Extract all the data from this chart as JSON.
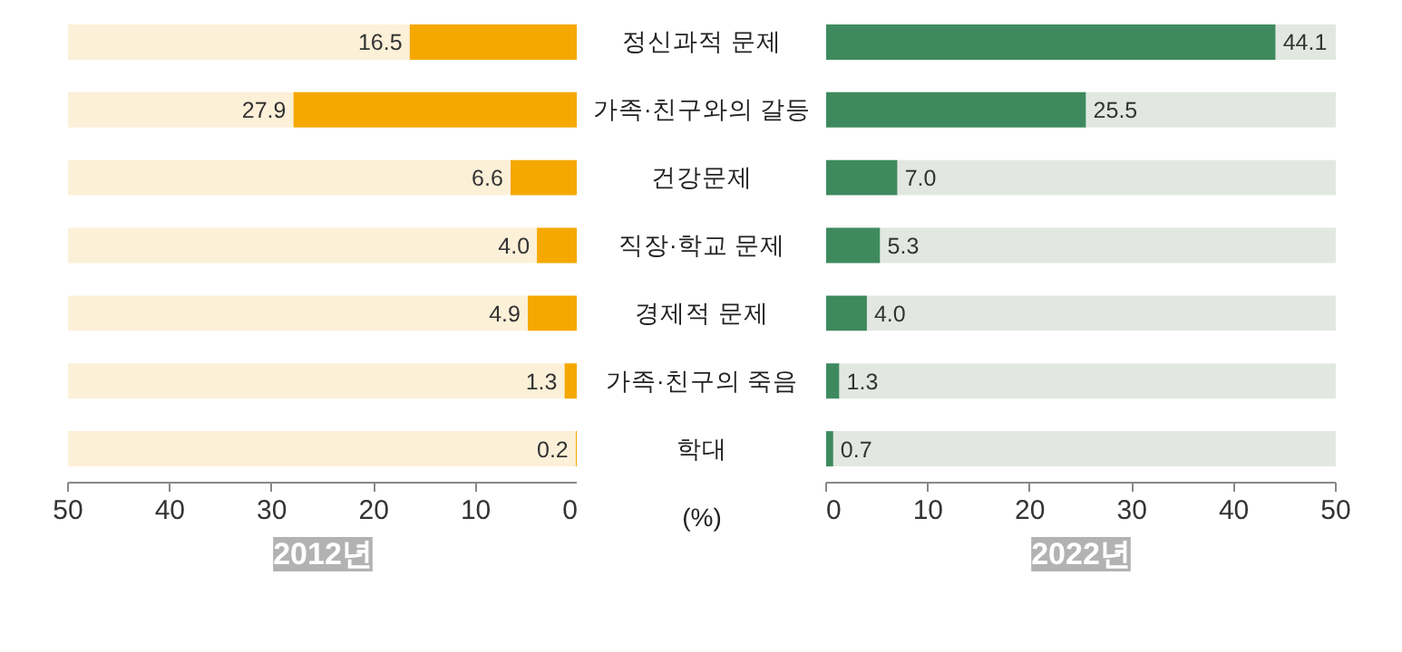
{
  "chart_data": [
    {
      "type": "bar",
      "orientation": "horizontal",
      "stacked": true,
      "xlabel": "2012년",
      "categories": [
        "정신과적 문제",
        "가족·친구와의 갈등",
        "건강문제",
        "직장·학교 문제",
        "경제적 문제",
        "가족·친구의 죽음",
        "학대"
      ],
      "series": [
        {
          "color": "#f5a800",
          "values": [
            16.5,
            27.9,
            6.6,
            4.0,
            4.9,
            1.3,
            0.2
          ],
          "value_labels": [
            "16.5",
            "27.9",
            "6.6",
            "4.0",
            "4.9",
            "1.3",
            "0.2"
          ]
        },
        {
          "color": "#fdf0d8",
          "values": [
            33.5,
            22.1,
            43.4,
            46.0,
            45.1,
            48.7,
            49.8
          ]
        }
      ],
      "xlim": [
        50,
        0
      ],
      "xticks": [
        50,
        40,
        30,
        20,
        10,
        0
      ],
      "grid": false,
      "annotations": [
        "(%)"
      ]
    },
    {
      "type": "bar",
      "orientation": "horizontal",
      "stacked": true,
      "xlabel": "2022년",
      "categories": [
        null,
        null,
        null,
        null,
        null,
        null,
        null
      ],
      "series": [
        {
          "color": "#3e8a5e",
          "values": [
            44.1,
            25.5,
            7.0,
            5.3,
            4.0,
            1.3,
            0.7
          ],
          "value_labels": [
            "44.1",
            "25.5",
            "7.0",
            "5.3",
            "4.0",
            "1.3",
            "0.7"
          ]
        },
        {
          "color": "#e2e8e1",
          "values": [
            5.9,
            24.5,
            43.0,
            44.7,
            46.0,
            48.7,
            49.3
          ]
        }
      ],
      "xlim": [
        0,
        50
      ],
      "xticks": [
        0,
        10,
        20,
        30,
        40,
        50
      ],
      "grid": false,
      "tick_labels": "x"
    }
  ]
}
